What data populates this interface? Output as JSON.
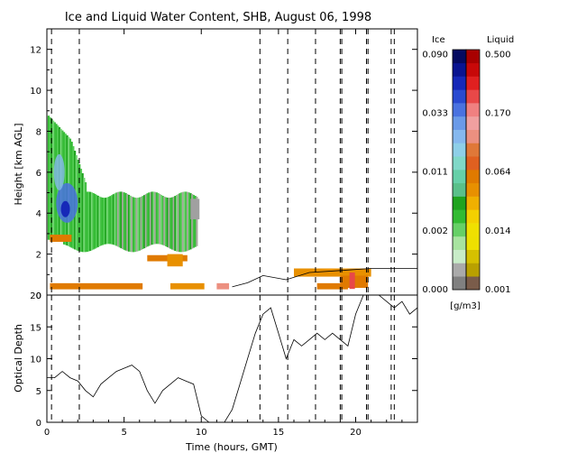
{
  "title": "Ice and Liquid Water Content, SHB, August 06, 1998",
  "colors": {
    "ice_scale": [
      "#808080",
      "#aaaaaa",
      "#c8ecc8",
      "#a8e4a0",
      "#66d066",
      "#33bb33",
      "#1fa31f",
      "#5ac08a",
      "#66d0a8",
      "#80d8c8",
      "#8ecfe8",
      "#86b8ee",
      "#6a9ae8",
      "#4a72e0",
      "#2a4ad0",
      "#1628b8",
      "#0a1490",
      "#050a60"
    ],
    "liquid_scale": [
      "#7a5c4a",
      "#b9a000",
      "#d6c000",
      "#eee000",
      "#f0e000",
      "#f4d000",
      "#f0b000",
      "#e89000",
      "#e07a00",
      "#e06020",
      "#e07838",
      "#ec9080",
      "#f0a0a0",
      "#f08080",
      "#e84848",
      "#e02020",
      "#c80808",
      "#a80000"
    ]
  },
  "chart_data": [
    {
      "type": "heatmap",
      "ylabel": "Height [km AGL]",
      "xlim": [
        0,
        24
      ],
      "ylim": [
        0,
        13
      ],
      "y_ticks": [
        "0",
        "2",
        "4",
        "6",
        "8",
        "10",
        "12"
      ],
      "dashed_lines_hours": [
        0.3,
        2.1,
        13.8,
        15.6,
        17.4,
        19.0,
        19.1,
        20.7,
        20.8,
        22.3,
        22.5
      ],
      "colorbar": {
        "ice_label": "Ice",
        "liquid_label": "Liquid",
        "units": "[g/m3]",
        "ice_ticks": [
          "0.000",
          "0.002",
          "0.011",
          "0.033",
          "0.090"
        ],
        "liquid_ticks": [
          "0.001",
          "0.014",
          "0.064",
          "0.170",
          "0.500"
        ]
      },
      "cloud_base_km": [
        {
          "x": 12.0,
          "y": 0.4
        },
        {
          "x": 13.0,
          "y": 0.6
        },
        {
          "x": 14.0,
          "y": 0.95
        },
        {
          "x": 15.5,
          "y": 0.75
        },
        {
          "x": 17.0,
          "y": 1.1
        },
        {
          "x": 19.0,
          "y": 1.2
        },
        {
          "x": 21.0,
          "y": 1.3
        },
        {
          "x": 24.0,
          "y": 1.3
        }
      ]
    },
    {
      "type": "line",
      "xlabel": "Time (hours, GMT)",
      "ylabel": "Optical Depth",
      "xlim": [
        0,
        24
      ],
      "ylim": [
        0,
        20
      ],
      "x_ticks": [
        "0",
        "5",
        "10",
        "15",
        "20"
      ],
      "y_ticks": [
        "0",
        "5",
        "10",
        "15",
        "20"
      ],
      "series": [
        {
          "x": [
            0,
            0.5,
            1,
            1.5,
            2,
            2.5,
            3,
            3.5,
            4,
            4.5,
            5,
            5.5,
            6,
            6.5,
            7,
            7.5,
            8,
            8.5,
            9,
            9.5,
            10,
            10.5,
            11,
            11.5,
            12,
            12.5,
            13,
            13.5,
            14,
            14.5,
            15,
            15.5,
            16,
            16.5,
            17,
            17.5,
            18,
            18.5,
            19,
            19.5,
            20,
            20.5,
            21,
            21.5,
            22,
            22.5,
            23,
            23.5,
            24
          ],
          "y": [
            7,
            7,
            8,
            7,
            6.5,
            5,
            4,
            6,
            7,
            8,
            8.5,
            9,
            8,
            5,
            3,
            5,
            6,
            7,
            6.5,
            6,
            1,
            0,
            0,
            0,
            2,
            6,
            10,
            14,
            17,
            18,
            14,
            10,
            13,
            12,
            13,
            14,
            13,
            14,
            13,
            12,
            17,
            20,
            20,
            20,
            19,
            18,
            19,
            17,
            18
          ]
        }
      ]
    }
  ]
}
